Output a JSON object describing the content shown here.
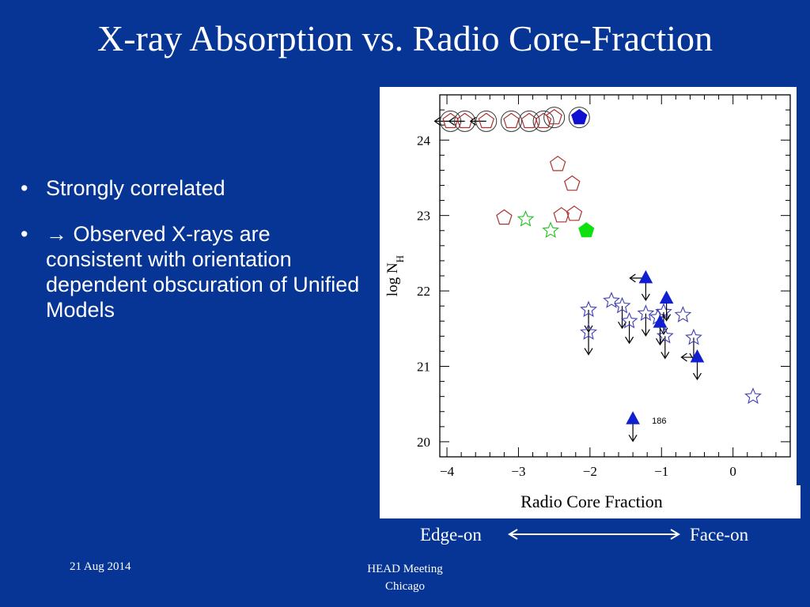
{
  "slide": {
    "title": "X-ray Absorption vs. Radio Core-Fraction",
    "bullets": [
      "Strongly correlated",
      "→ Observed X-rays are consistent with orientation dependent obscuration of Unified Models"
    ],
    "bullet_symbol": "•",
    "edge_label": "Edge-on",
    "face_label": "Face-on",
    "footer_date": "21 Aug 2014",
    "footer_meeting_line1": "HEAD Meeting",
    "footer_meeting_line2": "Chicago",
    "background_color": "#063596"
  },
  "chart_data": {
    "type": "scatter",
    "title": "",
    "xlabel": "Radio Core Fraction",
    "ylabel": "log N",
    "ylabel_subscript": "H",
    "xlim": [
      -4.1,
      0.8
    ],
    "ylim": [
      19.8,
      24.6
    ],
    "x_ticks": [
      -4,
      -3,
      -2,
      -1,
      0
    ],
    "x_tick_labels": [
      "−4",
      "−3",
      "−2",
      "−1",
      "0"
    ],
    "y_ticks": [
      20,
      21,
      22,
      23,
      24
    ],
    "y_tick_labels": [
      "20",
      "21",
      "22",
      "23",
      "24"
    ],
    "grid": false,
    "annotation": {
      "x": -1.2,
      "y": 20.28,
      "text": "186"
    },
    "series": [
      {
        "marker": "pentagon-open-ringed",
        "color": "#b03030",
        "points": [
          {
            "x": -3.95,
            "y": 24.25,
            "left": true
          },
          {
            "x": -3.75,
            "y": 24.25,
            "left": true
          },
          {
            "x": -3.45,
            "y": 24.25,
            "left": true
          },
          {
            "x": -3.1,
            "y": 24.25
          },
          {
            "x": -2.85,
            "y": 24.25
          },
          {
            "x": -2.65,
            "y": 24.25
          },
          {
            "x": -2.5,
            "y": 24.3
          }
        ]
      },
      {
        "marker": "pentagon-ringed",
        "color": "#1010d0",
        "points": [
          {
            "x": -2.15,
            "y": 24.3,
            "filled": true
          }
        ]
      },
      {
        "marker": "pentagon-open",
        "color": "#b03030",
        "points": [
          {
            "x": -3.2,
            "y": 22.97
          },
          {
            "x": -2.45,
            "y": 23.68
          },
          {
            "x": -2.25,
            "y": 23.42
          },
          {
            "x": -2.4,
            "y": 23.0
          },
          {
            "x": -2.22,
            "y": 23.02
          }
        ]
      },
      {
        "marker": "star-open",
        "color": "#20c020",
        "points": [
          {
            "x": -2.9,
            "y": 22.95
          },
          {
            "x": -2.55,
            "y": 22.8
          }
        ]
      },
      {
        "marker": "pentagon-filled",
        "color": "#10e010",
        "points": [
          {
            "x": -2.05,
            "y": 22.8
          }
        ]
      },
      {
        "marker": "star-open",
        "color": "#4040b0",
        "points": [
          {
            "x": -2.02,
            "y": 21.75,
            "down": true
          },
          {
            "x": -2.02,
            "y": 21.45,
            "down": true
          },
          {
            "x": -1.7,
            "y": 21.87
          },
          {
            "x": -1.55,
            "y": 21.8,
            "down": true
          },
          {
            "x": -1.45,
            "y": 21.6,
            "down": true
          },
          {
            "x": -1.22,
            "y": 21.7,
            "down": true
          },
          {
            "x": -1.05,
            "y": 21.65
          },
          {
            "x": -0.97,
            "y": 21.72,
            "down": true
          },
          {
            "x": -0.95,
            "y": 21.4,
            "down": true
          },
          {
            "x": -0.7,
            "y": 21.68
          },
          {
            "x": -0.55,
            "y": 21.38,
            "down": true
          },
          {
            "x": 0.28,
            "y": 20.6
          }
        ]
      },
      {
        "marker": "triangle-filled",
        "color": "#1020d0",
        "points": [
          {
            "x": -1.22,
            "y": 22.17,
            "left": true,
            "down": true
          },
          {
            "x": -0.93,
            "y": 21.9,
            "down": true
          },
          {
            "x": -1.02,
            "y": 21.58,
            "down": true
          },
          {
            "x": -0.5,
            "y": 21.12,
            "left": true,
            "down": true
          },
          {
            "x": -1.4,
            "y": 20.3,
            "down": true
          }
        ]
      }
    ]
  }
}
